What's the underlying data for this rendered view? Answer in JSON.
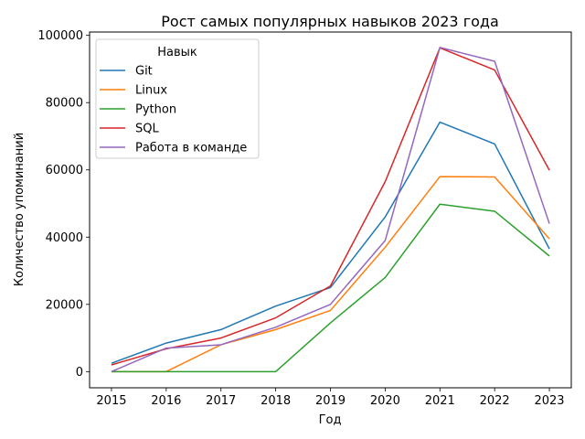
{
  "chart_data": {
    "type": "line",
    "title": "Рост самых популярных навыков 2023 года",
    "xlabel": "Год",
    "ylabel": "Количество упоминаний",
    "x": [
      2015,
      2016,
      2017,
      2018,
      2019,
      2020,
      2021,
      2022,
      2023
    ],
    "xticks": [
      "2015",
      "2016",
      "2017",
      "2018",
      "2019",
      "2020",
      "2021",
      "2022",
      "2023"
    ],
    "yticks": [
      0,
      20000,
      40000,
      60000,
      80000,
      100000
    ],
    "ytick_labels": [
      "0",
      "20000",
      "40000",
      "60000",
      "80000",
      "100000"
    ],
    "ylim": [
      -4800,
      101000
    ],
    "xlim": [
      2014.6,
      2023.4
    ],
    "grid": false,
    "legend": {
      "title": "Навык",
      "position": "top-left"
    },
    "series": [
      {
        "name": "Git",
        "color": "#1f77b4",
        "values": [
          2500,
          8500,
          12500,
          19500,
          25000,
          46000,
          74200,
          67700,
          36500
        ]
      },
      {
        "name": "Linux",
        "color": "#ff7f0e",
        "values": [
          0,
          0,
          8000,
          12500,
          18200,
          37000,
          58000,
          57900,
          39500
        ]
      },
      {
        "name": "Python",
        "color": "#2ca02c",
        "values": [
          0,
          0,
          0,
          0,
          14500,
          28000,
          49800,
          47700,
          34400
        ]
      },
      {
        "name": "SQL",
        "color": "#d62728",
        "values": [
          2000,
          6800,
          10000,
          16000,
          25500,
          56500,
          96300,
          89700,
          59900
        ]
      },
      {
        "name": "Работа в команде",
        "color": "#9467bd",
        "values": [
          0,
          7000,
          8000,
          13200,
          20000,
          39000,
          96400,
          92300,
          44000
        ]
      }
    ]
  }
}
